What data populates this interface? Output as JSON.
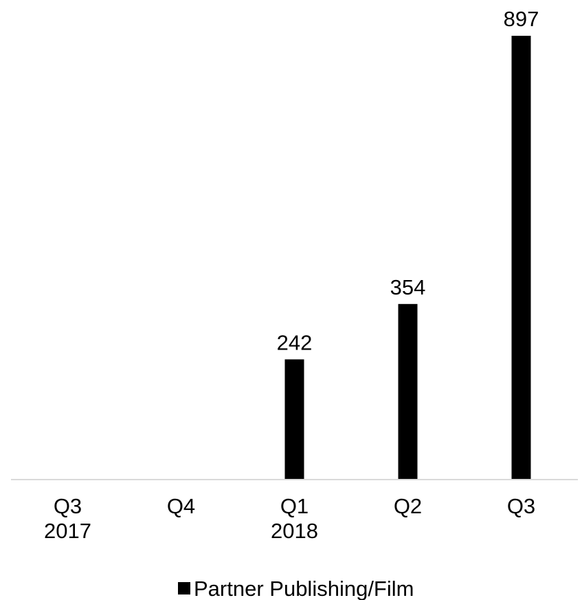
{
  "chart_data": {
    "type": "bar",
    "categories": [
      [
        "Q3",
        "2017"
      ],
      [
        "Q4"
      ],
      [
        "Q1",
        "2018"
      ],
      [
        "Q2"
      ],
      [
        "Q3"
      ]
    ],
    "series": [
      {
        "name": "Partner Publishing/Film",
        "values": [
          null,
          null,
          242,
          354,
          897
        ],
        "data_labels": [
          "",
          "",
          "242",
          "354",
          "897"
        ],
        "color": "#000000"
      }
    ],
    "title": "",
    "xlabel": "",
    "ylabel": "",
    "ylim": [
      0,
      897
    ],
    "grid": false,
    "legend_position": "bottom"
  }
}
